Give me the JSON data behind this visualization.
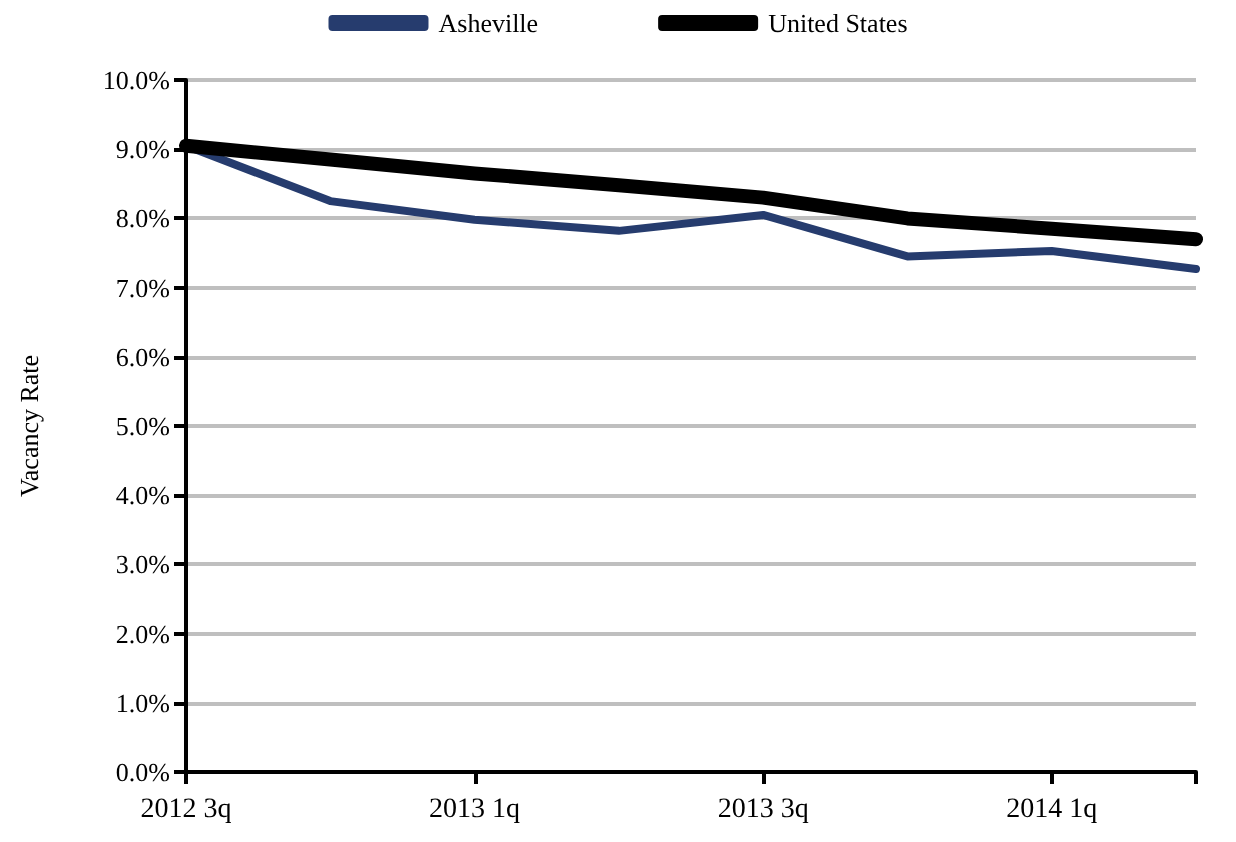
{
  "chart_data": {
    "type": "line",
    "ylabel": "Vacancy Rate",
    "categories": [
      "2012 3q",
      null,
      "2013 1q",
      null,
      "2013 3q",
      null,
      "2014 1q",
      null
    ],
    "series": [
      {
        "name": "Asheville",
        "color": "#263c6e",
        "values": [
          9.05,
          8.25,
          7.98,
          7.82,
          8.05,
          7.45,
          7.53,
          7.27
        ]
      },
      {
        "name": "United States",
        "color": "#000000",
        "values": [
          9.05,
          8.85,
          8.65,
          8.48,
          8.3,
          8.0,
          7.85,
          7.7
        ]
      }
    ],
    "ylim": [
      0,
      10
    ],
    "yticks": [
      {
        "value": 0,
        "label": "0.0%"
      },
      {
        "value": 1,
        "label": "1.0%"
      },
      {
        "value": 2,
        "label": "2.0%"
      },
      {
        "value": 3,
        "label": "3.0%"
      },
      {
        "value": 4,
        "label": "4.0%"
      },
      {
        "value": 5,
        "label": "5.0%"
      },
      {
        "value": 6,
        "label": "6.0%"
      },
      {
        "value": 7,
        "label": "7.0%"
      },
      {
        "value": 8,
        "label": "8.0%"
      },
      {
        "value": 9,
        "label": "9.0%"
      },
      {
        "value": 10,
        "label": "10.0%"
      }
    ],
    "grid": "y",
    "legend": "top",
    "marker": "none",
    "line_style": "solid"
  }
}
